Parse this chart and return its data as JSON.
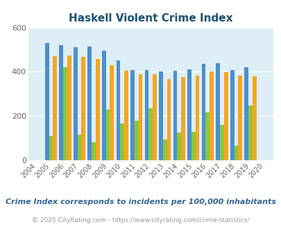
{
  "title": "Haskell Violent Crime Index",
  "years": [
    2004,
    2005,
    2006,
    2007,
    2008,
    2009,
    2010,
    2011,
    2012,
    2013,
    2014,
    2015,
    2016,
    2017,
    2018,
    2019,
    2020
  ],
  "haskell": [
    0,
    110,
    420,
    115,
    80,
    230,
    165,
    180,
    235,
    95,
    125,
    130,
    215,
    160,
    65,
    248,
    0
  ],
  "texas": [
    0,
    530,
    520,
    510,
    515,
    495,
    452,
    408,
    408,
    400,
    404,
    410,
    436,
    440,
    408,
    420,
    0
  ],
  "national": [
    0,
    470,
    473,
    468,
    457,
    428,
    403,
    390,
    390,
    368,
    375,
    383,
    400,
    397,
    381,
    379,
    0
  ],
  "haskell_color": "#8cc63f",
  "texas_color": "#4d8fcc",
  "national_color": "#f5a623",
  "bg_color": "#ddeef6",
  "title_color": "#1a5276",
  "label_color": "#666666",
  "footnote_color": "#336699",
  "copyright_color": "#999999",
  "ylim": [
    0,
    600
  ],
  "yticks": [
    0,
    200,
    400,
    600
  ],
  "footnote": "Crime Index corresponds to incidents per 100,000 inhabitants",
  "copyright": "© 2025 CityRating.com - https://www.cityrating.com/crime-statistics/",
  "bar_width": 0.28
}
